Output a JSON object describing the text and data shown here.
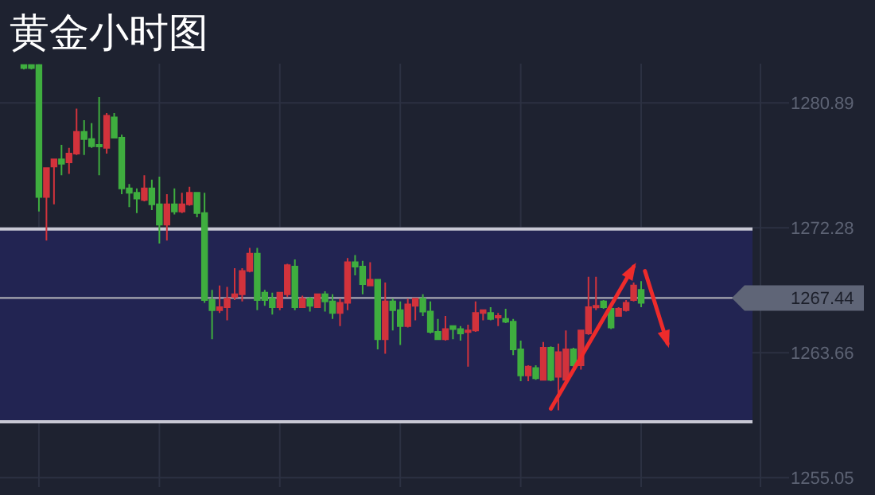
{
  "chart_data": {
    "type": "candlestick",
    "title": "黄金小时图",
    "categories": [
      null,
      null,
      null,
      null,
      null,
      null,
      null,
      null,
      null,
      null,
      null,
      null,
      null,
      null,
      null,
      null,
      null,
      null,
      null,
      null,
      null,
      null,
      null,
      null,
      null,
      null,
      null,
      null,
      null,
      null,
      null,
      null,
      null,
      null,
      null,
      null,
      null,
      null,
      null,
      null,
      null,
      null,
      null,
      null,
      null,
      null,
      null,
      null,
      null,
      null,
      null,
      null,
      null,
      null,
      null,
      null,
      null,
      null,
      null,
      null,
      null,
      null,
      null,
      null,
      null,
      null,
      null,
      null,
      null,
      null,
      null,
      null,
      null,
      null,
      null,
      null,
      null,
      null,
      null,
      null,
      null,
      null,
      null,
      null,
      null,
      null,
      null,
      null,
      null,
      null,
      null,
      null,
      null,
      null,
      null,
      null,
      null,
      null
    ],
    "ohlc": [
      [
        1283.3,
        1283.5,
        1283.2,
        1283.5
      ],
      [
        1283.3,
        1283.5,
        1283.2,
        1283.5
      ],
      [
        1274.4,
        1283.5,
        1273.4,
        1283.5
      ],
      [
        1276.4,
        1276.4,
        1271.4,
        1274.4
      ],
      [
        1277.0,
        1277.0,
        1273.9,
        1276.5
      ],
      [
        1276.7,
        1278.0,
        1275.9,
        1277.0
      ],
      [
        1277.4,
        1277.8,
        1276.0,
        1276.8
      ],
      [
        1278.9,
        1280.5,
        1277.3,
        1277.4
      ],
      [
        1278.4,
        1279.7,
        1277.3,
        1278.9
      ],
      [
        1277.9,
        1279.5,
        1277.8,
        1278.4
      ],
      [
        1277.9,
        1281.3,
        1275.9,
        1278.0
      ],
      [
        1280.0,
        1280.2,
        1277.4,
        1277.8
      ],
      [
        1278.5,
        1280.2,
        1278.5,
        1279.9
      ],
      [
        1275.0,
        1278.7,
        1274.6,
        1278.5
      ],
      [
        1274.7,
        1275.3,
        1273.7,
        1275.0
      ],
      [
        1274.3,
        1275.0,
        1273.3,
        1274.7
      ],
      [
        1275.0,
        1275.9,
        1274.1,
        1274.2
      ],
      [
        1273.9,
        1275.6,
        1273.5,
        1275.0
      ],
      [
        1272.5,
        1275.8,
        1271.2,
        1273.9
      ],
      [
        1273.9,
        1274.6,
        1271.4,
        1272.5
      ],
      [
        1273.4,
        1275.0,
        1273.2,
        1273.9
      ],
      [
        1273.9,
        1274.7,
        1273.3,
        1273.4
      ],
      [
        1274.7,
        1275.1,
        1273.8,
        1273.9
      ],
      [
        1273.3,
        1274.7,
        1273.0,
        1274.7
      ],
      [
        1267.3,
        1274.7,
        1267.1,
        1273.3
      ],
      [
        1266.6,
        1268.0,
        1264.6,
        1267.3
      ],
      [
        1266.8,
        1268.3,
        1266.4,
        1266.6
      ],
      [
        1267.4,
        1268.2,
        1265.9,
        1266.8
      ],
      [
        1267.7,
        1269.5,
        1267.3,
        1267.5
      ],
      [
        1269.3,
        1269.5,
        1267.2,
        1267.7
      ],
      [
        1270.5,
        1270.9,
        1269.2,
        1269.3
      ],
      [
        1267.3,
        1270.9,
        1266.6,
        1270.5
      ],
      [
        1267.3,
        1268.0,
        1266.9,
        1267.8
      ],
      [
        1266.8,
        1267.8,
        1266.3,
        1267.4
      ],
      [
        1267.8,
        1267.8,
        1266.6,
        1266.8
      ],
      [
        1269.7,
        1269.8,
        1267.5,
        1267.7
      ],
      [
        1266.8,
        1270.1,
        1266.6,
        1269.6
      ],
      [
        1267.4,
        1267.6,
        1266.8,
        1266.8
      ],
      [
        1266.9,
        1267.5,
        1266.5,
        1267.4
      ],
      [
        1267.7,
        1267.7,
        1266.8,
        1266.8
      ],
      [
        1267.2,
        1267.9,
        1266.5,
        1267.7
      ],
      [
        1266.4,
        1267.7,
        1266.0,
        1267.2
      ],
      [
        1267.1,
        1267.4,
        1265.5,
        1266.4
      ],
      [
        1269.9,
        1270.2,
        1266.6,
        1267.1
      ],
      [
        1269.6,
        1270.4,
        1269.0,
        1269.9
      ],
      [
        1268.4,
        1270.0,
        1267.7,
        1269.6
      ],
      [
        1268.7,
        1269.9,
        1268.3,
        1268.3
      ],
      [
        1264.6,
        1268.7,
        1263.9,
        1268.7
      ],
      [
        1267.2,
        1268.5,
        1263.6,
        1264.6
      ],
      [
        1266.6,
        1267.4,
        1265.2,
        1267.2
      ],
      [
        1265.5,
        1267.2,
        1264.2,
        1266.6
      ],
      [
        1267.0,
        1267.4,
        1265.4,
        1265.5
      ],
      [
        1267.4,
        1267.4,
        1265.9,
        1266.9
      ],
      [
        1266.5,
        1267.7,
        1266.2,
        1267.4
      ],
      [
        1265.1,
        1267.2,
        1265.0,
        1266.5
      ],
      [
        1264.6,
        1266.0,
        1264.6,
        1265.1
      ],
      [
        1265.3,
        1266.2,
        1264.5,
        1264.6
      ],
      [
        1265.3,
        1265.5,
        1264.6,
        1265.5
      ],
      [
        1265.0,
        1265.5,
        1264.5,
        1265.3
      ],
      [
        1265.2,
        1265.6,
        1262.7,
        1265.1
      ],
      [
        1266.4,
        1267.2,
        1265.1,
        1265.2
      ],
      [
        1266.6,
        1266.6,
        1265.9,
        1266.4
      ],
      [
        1266.0,
        1266.8,
        1265.9,
        1266.4
      ],
      [
        1266.2,
        1266.4,
        1265.5,
        1266.1
      ],
      [
        1265.8,
        1266.7,
        1265.7,
        1266.0
      ],
      [
        1263.9,
        1266.0,
        1263.5,
        1265.8
      ],
      [
        1262.1,
        1264.5,
        1261.7,
        1263.9
      ],
      [
        1262.7,
        1262.8,
        1261.7,
        1262.1
      ],
      [
        1261.9,
        1262.8,
        1261.8,
        1262.6
      ],
      [
        1264.0,
        1264.4,
        1261.8,
        1261.8
      ],
      [
        1261.8,
        1264.1,
        1261.7,
        1264.0
      ],
      [
        1263.7,
        1264.3,
        1259.7,
        1262.0
      ],
      [
        1263.9,
        1265.2,
        1261.8,
        1261.8
      ],
      [
        1262.8,
        1264.0,
        1262.7,
        1263.9
      ],
      [
        1265.2,
        1265.2,
        1262.5,
        1262.8
      ],
      [
        1266.8,
        1268.9,
        1264.9,
        1265.0
      ],
      [
        1266.9,
        1268.9,
        1266.6,
        1266.8
      ],
      [
        1266.8,
        1267.3,
        1266.7,
        1267.2
      ],
      [
        1265.4,
        1266.8,
        1265.3,
        1266.7
      ],
      [
        1266.7,
        1266.8,
        1266.2,
        1266.2
      ],
      [
        1267.1,
        1267.3,
        1266.5,
        1266.6
      ],
      [
        1268.3,
        1268.5,
        1267.2,
        1267.3
      ],
      [
        1267.1,
        1268.6,
        1266.8,
        1268.0
      ],
      null,
      null,
      null,
      null,
      null,
      null,
      null,
      null,
      null,
      null,
      null,
      null,
      null,
      null,
      null
    ],
    "ylim": [
      1254.4,
      1283.6
    ],
    "yticks": [
      1255.05,
      1263.66,
      1272.28,
      1280.89
    ],
    "grid": true,
    "tick_labels": "y",
    "ref_lines": [
      {
        "axis": "y",
        "value": 1267.44,
        "label": "1267.44"
      }
    ],
    "bands": [
      {
        "axis": "y",
        "from": 1258.9,
        "to": 1272.2,
        "color": "#222452"
      }
    ]
  }
}
